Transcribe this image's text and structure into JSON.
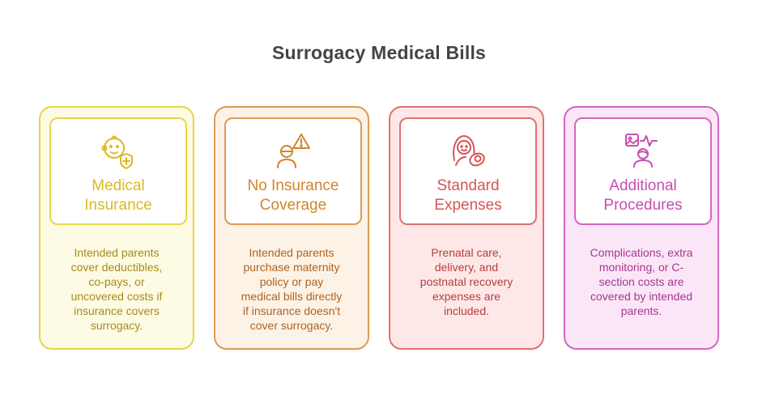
{
  "title": "Surrogacy Medical Bills",
  "colors": {
    "medical_insurance": "#e8d44a",
    "no_insurance_coverage": "#dd9a55",
    "standard_expenses": "#e07070",
    "additional_procedures": "#d266c0"
  },
  "cards": [
    {
      "icon": "baby-shield-icon",
      "heading": "Medical\nInsurance",
      "description": "Intended parents\ncover deductibles,\nco-pays, or\nuncovered costs if\ninsurance covers\nsurrogacy."
    },
    {
      "icon": "person-warning-icon",
      "heading": "No Insurance\nCoverage",
      "description": "Intended parents\npurchase maternity\npolicy or pay\nmedical bills directly\nif insurance doesn't\ncover surrogacy."
    },
    {
      "icon": "mother-baby-icon",
      "heading": "Standard\nExpenses",
      "description": "Prenatal care,\ndelivery, and\npostnatal recovery\nexpenses are\nincluded."
    },
    {
      "icon": "ultrasound-monitor-icon",
      "heading": "Additional\nProcedures",
      "description": "Complications, extra\nmonitoring, or C-\nsection costs are\ncovered by intended\nparents."
    }
  ]
}
